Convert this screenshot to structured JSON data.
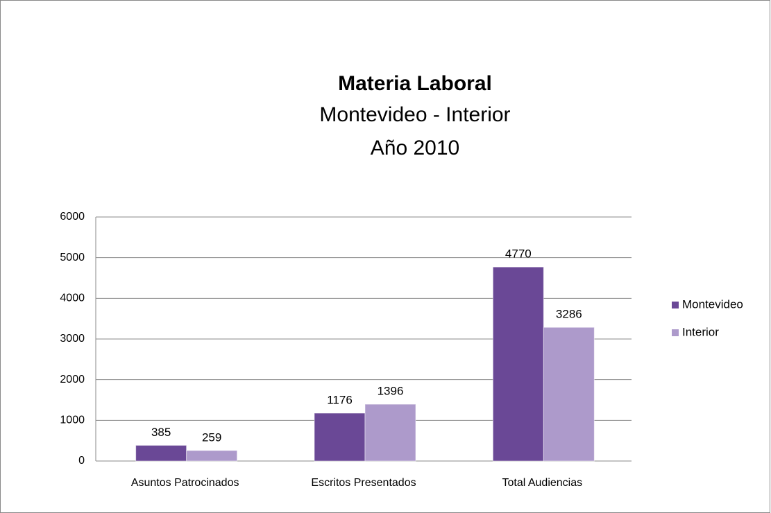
{
  "chart_data": {
    "type": "bar",
    "title": "Materia Laboral",
    "subtitle": [
      "Montevideo - Interior",
      "Año 2010"
    ],
    "categories": [
      "Asuntos Patrocinados",
      "Escritos Presentados",
      "Total Audiencias"
    ],
    "series": [
      {
        "name": "Montevideo",
        "color": "#6a4896",
        "values": [
          385,
          1176,
          4770
        ]
      },
      {
        "name": "Interior",
        "color": "#ad9acb",
        "values": [
          259,
          1396,
          3286
        ]
      }
    ],
    "ylim": [
      0,
      6000
    ],
    "yticks": [
      0,
      1000,
      2000,
      3000,
      4000,
      5000,
      6000
    ],
    "grid": true,
    "legend": "right"
  }
}
